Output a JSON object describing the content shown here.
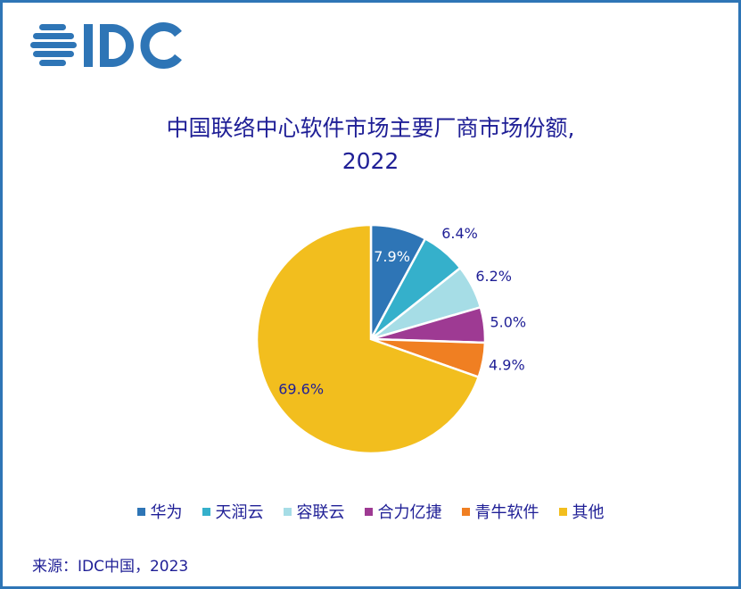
{
  "logo_text": "IDC",
  "chart_data": {
    "type": "pie",
    "title_line1": "中国联络中心软件市场主要厂商市场份额,",
    "title_line2": "2022",
    "categories": [
      "华为",
      "天润云",
      "容联云",
      "合力亿捷",
      "青牛软件",
      "其他"
    ],
    "values": [
      7.9,
      6.4,
      6.2,
      5.0,
      4.9,
      69.6
    ],
    "labels": [
      "7.9%",
      "6.4%",
      "6.2%",
      "5.0%",
      "4.9%",
      "69.6%"
    ],
    "colors": [
      "#2E75B6",
      "#35B0CB",
      "#A6DDE6",
      "#9E3A93",
      "#F07F22",
      "#F2BE1E"
    ],
    "legend_position": "bottom",
    "start": "top, clockwise"
  },
  "source": "来源：IDC中国，2023"
}
